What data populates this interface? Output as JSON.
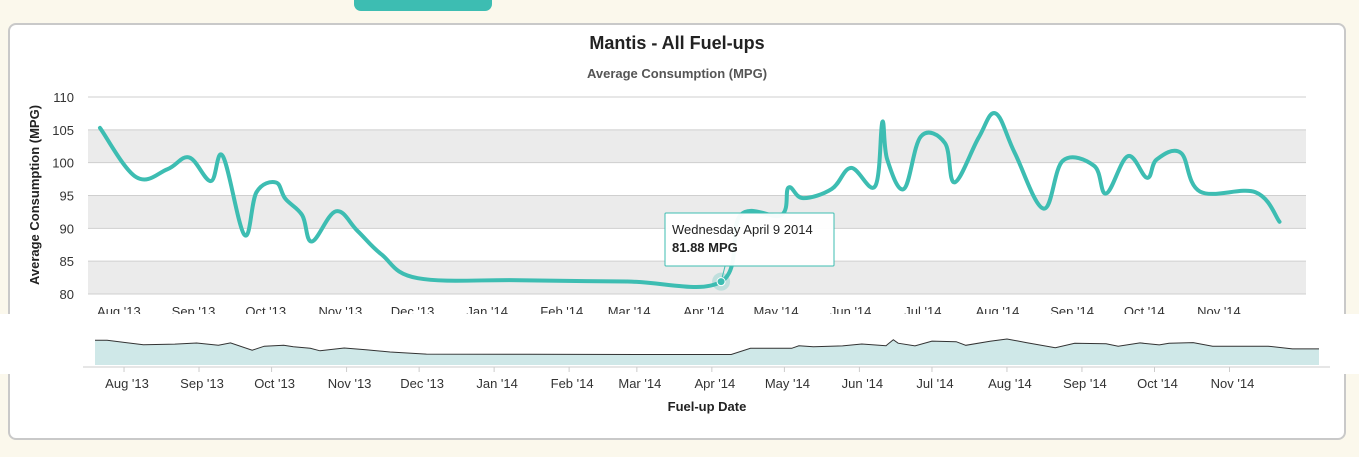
{
  "colors": {
    "accent": "#3dbdb2",
    "band": "#ebebeb",
    "page_bg": "#fbf8ec"
  },
  "chart_data": {
    "type": "line",
    "title": "Mantis - All Fuel-ups",
    "subtitle": "Average Consumption (MPG)",
    "ylabel": "Average Consumption (MPG)",
    "xlabel": "Fuel-up Date",
    "ylim": [
      80,
      110
    ],
    "yticks": [
      80,
      85,
      90,
      95,
      100,
      105,
      110
    ],
    "xlim": [
      "2013-07-20",
      "2014-12-08"
    ],
    "xticks": [
      {
        "date": "2013-08-01",
        "label": "Aug '13"
      },
      {
        "date": "2013-09-01",
        "label": "Sep '13"
      },
      {
        "date": "2013-10-01",
        "label": "Oct '13"
      },
      {
        "date": "2013-11-01",
        "label": "Nov '13"
      },
      {
        "date": "2013-12-01",
        "label": "Dec '13"
      },
      {
        "date": "2014-01-01",
        "label": "Jan '14"
      },
      {
        "date": "2014-02-01",
        "label": "Feb '14"
      },
      {
        "date": "2014-03-01",
        "label": "Mar '14"
      },
      {
        "date": "2014-04-01",
        "label": "Apr '14"
      },
      {
        "date": "2014-05-01",
        "label": "May '14"
      },
      {
        "date": "2014-06-01",
        "label": "Jun '14"
      },
      {
        "date": "2014-07-01",
        "label": "Jul '14"
      },
      {
        "date": "2014-08-01",
        "label": "Aug '14"
      },
      {
        "date": "2014-09-01",
        "label": "Sep '14"
      },
      {
        "date": "2014-10-01",
        "label": "Oct '14"
      },
      {
        "date": "2014-11-01",
        "label": "Nov '14"
      }
    ],
    "grid": true,
    "alternate_bands": true,
    "series": [
      {
        "points": [
          [
            "2013-07-25",
            105.3
          ],
          [
            "2013-08-09",
            97.8
          ],
          [
            "2013-08-22",
            99.0
          ],
          [
            "2013-08-31",
            100.8
          ],
          [
            "2013-09-09",
            97.2
          ],
          [
            "2013-09-14",
            101.0
          ],
          [
            "2013-09-23",
            89.0
          ],
          [
            "2013-09-28",
            95.5
          ],
          [
            "2013-10-06",
            97.0
          ],
          [
            "2013-10-10",
            94.5
          ],
          [
            "2013-10-17",
            92.0
          ],
          [
            "2013-10-21",
            88.0
          ],
          [
            "2013-10-31",
            92.6
          ],
          [
            "2013-11-09",
            89.6
          ],
          [
            "2013-11-19",
            86.0
          ],
          [
            "2013-12-04",
            82.4
          ],
          [
            "2014-01-15",
            82.1
          ],
          [
            "2014-03-01",
            81.9
          ],
          [
            "2014-04-09",
            81.88
          ],
          [
            "2014-04-17",
            92.0
          ],
          [
            "2014-05-04",
            92.0
          ],
          [
            "2014-05-07",
            96.2
          ],
          [
            "2014-05-13",
            94.6
          ],
          [
            "2014-05-25",
            96.0
          ],
          [
            "2014-06-02",
            99.2
          ],
          [
            "2014-06-12",
            96.4
          ],
          [
            "2014-06-15",
            106.2
          ],
          [
            "2014-06-17",
            100.5
          ],
          [
            "2014-06-24",
            96.0
          ],
          [
            "2014-07-01",
            104.0
          ],
          [
            "2014-07-11",
            103.0
          ],
          [
            "2014-07-15",
            97.0
          ],
          [
            "2014-07-25",
            103.8
          ],
          [
            "2014-08-01",
            107.5
          ],
          [
            "2014-08-09",
            101.5
          ],
          [
            "2014-08-21",
            93.0
          ],
          [
            "2014-08-29",
            100.3
          ],
          [
            "2014-09-11",
            99.5
          ],
          [
            "2014-09-16",
            95.3
          ],
          [
            "2014-09-25",
            101.0
          ],
          [
            "2014-10-03",
            97.7
          ],
          [
            "2014-10-07",
            100.5
          ],
          [
            "2014-10-17",
            101.5
          ],
          [
            "2014-10-25",
            95.6
          ],
          [
            "2014-11-17",
            95.5
          ],
          [
            "2014-11-27",
            91.0
          ]
        ]
      }
    ],
    "tooltip": {
      "date": "2014-04-09",
      "label": "Wednesday April 9 2014",
      "value": 81.88,
      "value_text": "81.88 MPG"
    },
    "navigator": {
      "present": true,
      "xlabel": "Fuel-up Date"
    }
  }
}
